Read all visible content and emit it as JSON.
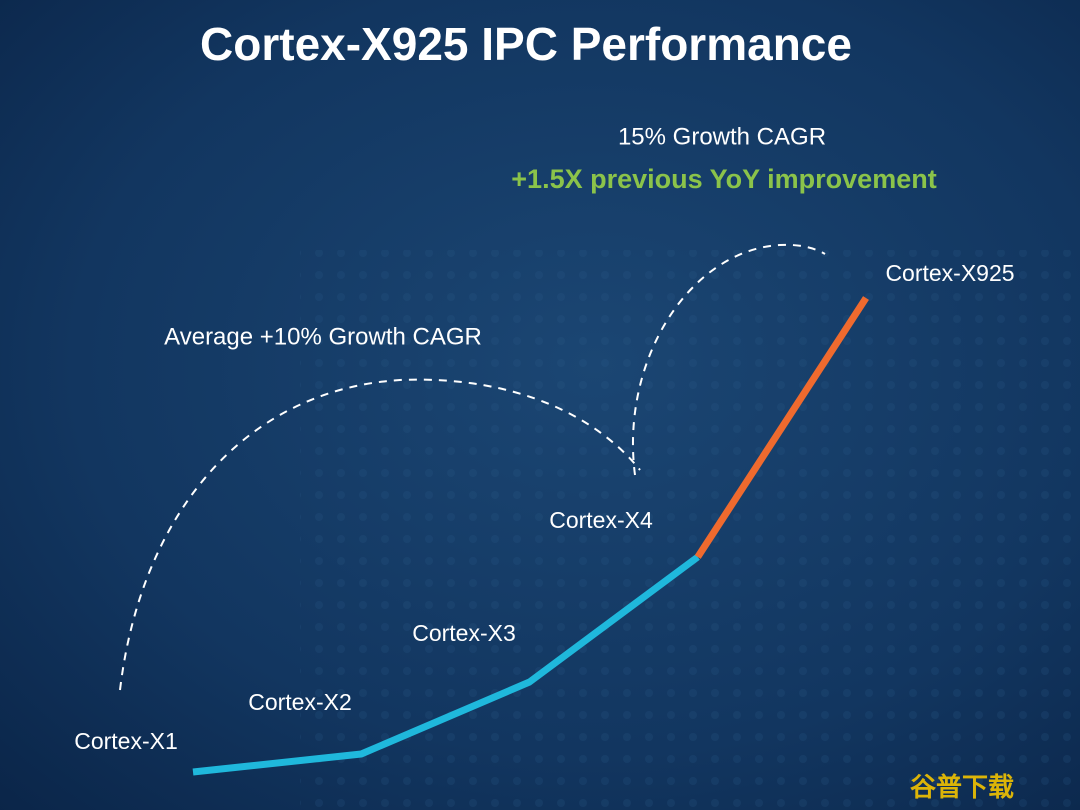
{
  "chart_data": {
    "type": "line",
    "title": "Cortex-X925 IPC Performance",
    "categories": [
      "Cortex-X1",
      "Cortex-X2",
      "Cortex-X3",
      "Cortex-X4",
      "Cortex-X925"
    ],
    "series": [
      {
        "color": "#1fb8dc",
        "values": [
          38,
          56,
          128,
          253,
          null
        ]
      },
      {
        "color": "#ef6a2e",
        "values": [
          null,
          null,
          null,
          253,
          512
        ]
      }
    ],
    "annotations": [
      "Average +10% Growth CAGR",
      "15% Growth CAGR",
      "+1.5X previous YoY improvement"
    ],
    "watermark": "谷普下载"
  }
}
